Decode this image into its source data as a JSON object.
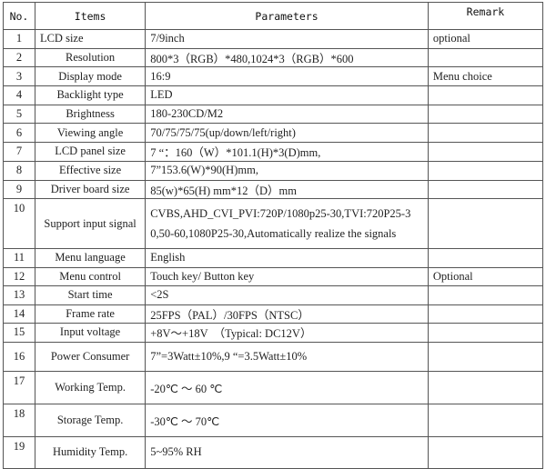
{
  "headers": {
    "no": "No.",
    "items": "Items",
    "parameters": "Parameters",
    "remark": "Remark"
  },
  "rows": [
    {
      "no": "1",
      "item": "LCD size",
      "param": "7/9inch",
      "remark": "optional"
    },
    {
      "no": "2",
      "item": "Resolution",
      "param": "800*3（RGB）*480,1024*3（RGB）*600",
      "remark": ""
    },
    {
      "no": "3",
      "item": "Display mode",
      "param": "16:9",
      "remark": "Menu choice"
    },
    {
      "no": "4",
      "item": "Backlight type",
      "param": "LED",
      "remark": ""
    },
    {
      "no": "5",
      "item": "Brightness",
      "param": "180-230CD/M2",
      "remark": ""
    },
    {
      "no": "6",
      "item": "Viewing angle",
      "param": "70/75/75/75(up/down/left/right)",
      "remark": ""
    },
    {
      "no": "7",
      "item": "LCD panel size",
      "param": "7 “：160（W）*101.1(H)*3(D)mm,",
      "remark": ""
    },
    {
      "no": "8",
      "item": "Effective size",
      "param": "7”153.6(W)*90(H)mm,",
      "remark": ""
    },
    {
      "no": "9",
      "item": "Driver board size",
      "param": "85(w)*65(H) mm*12（D）mm",
      "remark": ""
    },
    {
      "no": "10",
      "item": "Support input signal",
      "param": "CVBS,AHD_CVI_PVI:720P/1080p25-30,TVI:720P25-3",
      "param2": "0,50-60,1080P25-30,Automatically realize the signals",
      "remark": ""
    },
    {
      "no": "11",
      "item": "Menu language",
      "param": "English",
      "remark": ""
    },
    {
      "no": "12",
      "item": "Menu control",
      "param": "Touch key/ Button key",
      "remark": "Optional"
    },
    {
      "no": "13",
      "item": "Start time",
      "param": "<2S",
      "remark": ""
    },
    {
      "no": "14",
      "item": "Frame rate",
      "param": "25FPS（PAL）/30FPS（NTSC）",
      "remark": ""
    },
    {
      "no": "15",
      "item": "Input voltage",
      "param": "+8V～+18V　（Typical: DC12V）",
      "remark": ""
    },
    {
      "no": "16",
      "item": "Power Consumer",
      "param": "7”=3Watt±10%,9 “=3.5Watt±10%",
      "remark": ""
    },
    {
      "no": "17",
      "item": "Working Temp.",
      "param": "-20℃ ～ 60 ℃",
      "remark": ""
    },
    {
      "no": "18",
      "item": "Storage Temp.",
      "param": "-30℃ ～ 70℃",
      "remark": ""
    },
    {
      "no": "19",
      "item": "Humidity Temp.",
      "param": "5~95% RH",
      "remark": ""
    }
  ]
}
